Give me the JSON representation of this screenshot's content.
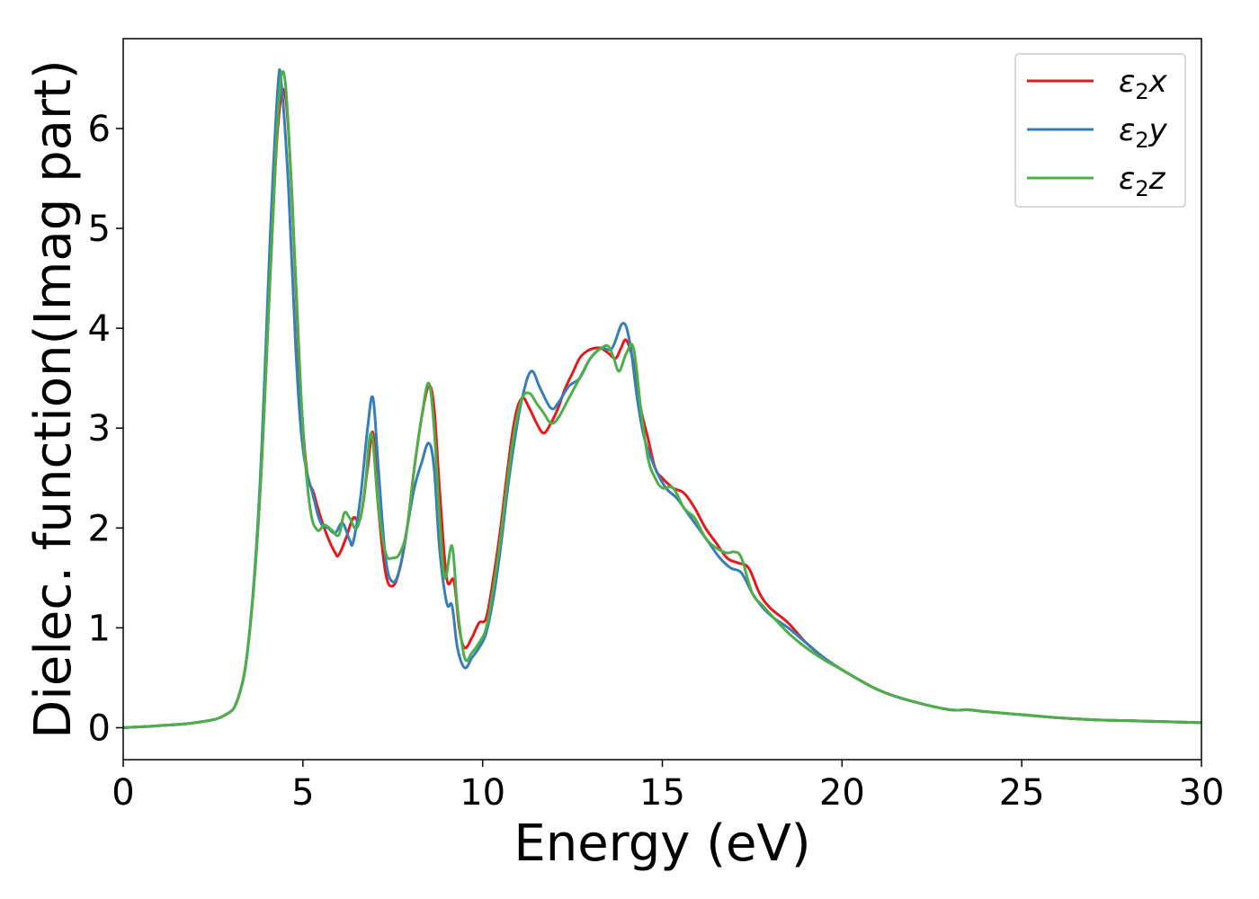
{
  "chart_data": {
    "type": "line",
    "title": "",
    "xlabel": "Energy (eV)",
    "ylabel": "Dielec. function(Imag part)",
    "xlim": [
      0,
      30
    ],
    "ylim": [
      -0.32,
      6.9
    ],
    "xticks": [
      0,
      5,
      10,
      15,
      20,
      25,
      30
    ],
    "yticks": [
      0,
      1,
      2,
      3,
      4,
      5,
      6
    ],
    "grid": false,
    "legend_position": "top-right",
    "colors": {
      "e2x": "#e41a1c",
      "e2y": "#377eb8",
      "e2z": "#4daf4a"
    },
    "series": [
      {
        "key": "e2x",
        "name_main": "ε",
        "name_sub": "2",
        "name_suffix": "x",
        "x": [
          0,
          1,
          2,
          2.8,
          3.2,
          3.5,
          3.8,
          4.1,
          4.3,
          4.5,
          4.7,
          4.9,
          5.1,
          5.3,
          5.5,
          5.7,
          5.9,
          6.0,
          6.2,
          6.4,
          6.6,
          6.8,
          6.95,
          7.1,
          7.3,
          7.5,
          7.7,
          7.9,
          8.1,
          8.3,
          8.5,
          8.65,
          8.8,
          9.0,
          9.2,
          9.35,
          9.5,
          9.7,
          9.9,
          10.1,
          10.3,
          10.5,
          10.7,
          10.9,
          11.1,
          11.3,
          11.5,
          11.7,
          11.9,
          12.1,
          12.3,
          12.5,
          12.7,
          12.9,
          13.1,
          13.3,
          13.5,
          13.7,
          13.85,
          14.0,
          14.2,
          14.4,
          14.6,
          14.8,
          15.0,
          15.3,
          15.6,
          15.9,
          16.2,
          16.5,
          16.8,
          17.1,
          17.4,
          17.7,
          18.0,
          18.5,
          19.0,
          19.5,
          20.0,
          21.0,
          22.0,
          23.0,
          23.5,
          24.0,
          25.0,
          26.0,
          27.0,
          28.0,
          29.0,
          30.0
        ],
        "y": [
          0.0,
          0.02,
          0.05,
          0.12,
          0.3,
          0.9,
          2.3,
          4.6,
          6.0,
          6.35,
          5.3,
          3.6,
          2.6,
          2.35,
          2.1,
          1.9,
          1.75,
          1.73,
          1.9,
          2.1,
          2.1,
          2.6,
          2.95,
          2.2,
          1.55,
          1.42,
          1.6,
          2.0,
          2.6,
          3.1,
          3.42,
          3.2,
          2.4,
          1.5,
          1.47,
          1.0,
          0.8,
          0.9,
          1.05,
          1.1,
          1.5,
          2.0,
          2.6,
          3.1,
          3.3,
          3.2,
          3.05,
          2.95,
          3.05,
          3.2,
          3.4,
          3.55,
          3.7,
          3.77,
          3.8,
          3.8,
          3.75,
          3.7,
          3.8,
          3.88,
          3.65,
          3.2,
          2.9,
          2.6,
          2.5,
          2.4,
          2.35,
          2.2,
          2.0,
          1.85,
          1.7,
          1.65,
          1.6,
          1.35,
          1.2,
          1.05,
          0.85,
          0.7,
          0.58,
          0.38,
          0.26,
          0.18,
          0.18,
          0.16,
          0.13,
          0.1,
          0.08,
          0.07,
          0.06,
          0.05
        ]
      },
      {
        "key": "e2y",
        "name_main": "ε",
        "name_sub": "2",
        "name_suffix": "y",
        "x": [
          0,
          1,
          2,
          2.8,
          3.2,
          3.5,
          3.8,
          4.1,
          4.3,
          4.4,
          4.6,
          4.8,
          5.0,
          5.3,
          5.5,
          5.7,
          5.9,
          6.1,
          6.3,
          6.4,
          6.6,
          6.8,
          6.95,
          7.1,
          7.3,
          7.5,
          7.7,
          7.9,
          8.1,
          8.3,
          8.5,
          8.65,
          8.8,
          9.0,
          9.15,
          9.3,
          9.5,
          9.7,
          9.9,
          10.1,
          10.3,
          10.5,
          10.7,
          10.9,
          11.1,
          11.35,
          11.6,
          11.9,
          12.1,
          12.4,
          12.7,
          13.0,
          13.3,
          13.6,
          13.9,
          14.1,
          14.3,
          14.5,
          14.8,
          15.1,
          15.4,
          15.7,
          16.0,
          16.3,
          16.6,
          16.9,
          17.2,
          17.5,
          17.8,
          18.1,
          18.5,
          19.0,
          19.5,
          20.0,
          21.0,
          22.0,
          23.0,
          23.5,
          24.0,
          25.0,
          26.0,
          27.0,
          28.0,
          29.0,
          30.0
        ],
        "y": [
          0.0,
          0.02,
          0.05,
          0.12,
          0.3,
          0.9,
          2.4,
          5.0,
          6.4,
          6.45,
          5.4,
          3.8,
          2.8,
          2.3,
          2.05,
          2.0,
          1.95,
          2.05,
          1.88,
          1.86,
          2.3,
          3.0,
          3.3,
          2.6,
          1.7,
          1.46,
          1.6,
          2.0,
          2.4,
          2.65,
          2.85,
          2.6,
          1.8,
          1.25,
          1.22,
          0.8,
          0.6,
          0.7,
          0.8,
          0.95,
          1.3,
          1.8,
          2.4,
          2.9,
          3.3,
          3.57,
          3.4,
          3.2,
          3.25,
          3.42,
          3.5,
          3.7,
          3.8,
          3.8,
          4.05,
          3.85,
          3.3,
          2.9,
          2.6,
          2.4,
          2.3,
          2.15,
          2.0,
          1.85,
          1.7,
          1.6,
          1.55,
          1.35,
          1.2,
          1.1,
          1.0,
          0.85,
          0.7,
          0.58,
          0.38,
          0.26,
          0.18,
          0.18,
          0.16,
          0.13,
          0.1,
          0.08,
          0.07,
          0.06,
          0.05
        ]
      },
      {
        "key": "e2z",
        "name_main": "ε",
        "name_sub": "2",
        "name_suffix": "z",
        "x": [
          0,
          1,
          2,
          2.8,
          3.2,
          3.5,
          3.8,
          4.1,
          4.3,
          4.45,
          4.6,
          4.8,
          5.0,
          5.2,
          5.4,
          5.6,
          5.8,
          6.0,
          6.15,
          6.3,
          6.5,
          6.7,
          6.9,
          7.1,
          7.3,
          7.5,
          7.7,
          7.9,
          8.1,
          8.3,
          8.5,
          8.65,
          8.8,
          8.95,
          9.15,
          9.3,
          9.5,
          9.7,
          9.9,
          10.1,
          10.3,
          10.5,
          10.7,
          10.9,
          11.1,
          11.3,
          11.5,
          11.7,
          11.9,
          12.1,
          12.4,
          12.7,
          13.0,
          13.3,
          13.5,
          13.65,
          13.8,
          14.0,
          14.2,
          14.4,
          14.6,
          14.8,
          15.0,
          15.3,
          15.6,
          15.9,
          16.2,
          16.5,
          16.8,
          17.0,
          17.2,
          17.5,
          17.8,
          18.1,
          18.5,
          19.0,
          19.5,
          20.0,
          21.0,
          22.0,
          23.0,
          23.5,
          24.0,
          25.0,
          26.0,
          27.0,
          28.0,
          29.0,
          30.0
        ],
        "y": [
          0.0,
          0.02,
          0.05,
          0.12,
          0.3,
          0.9,
          2.3,
          4.6,
          6.1,
          6.57,
          6.0,
          4.5,
          3.0,
          2.2,
          1.98,
          2.03,
          1.98,
          1.93,
          2.15,
          2.1,
          2.0,
          2.3,
          2.95,
          2.2,
          1.75,
          1.7,
          1.75,
          2.0,
          2.6,
          3.1,
          3.45,
          3.0,
          2.1,
          1.5,
          1.82,
          1.2,
          0.7,
          0.75,
          0.85,
          1.0,
          1.4,
          1.9,
          2.5,
          3.0,
          3.3,
          3.35,
          3.25,
          3.15,
          3.05,
          3.1,
          3.3,
          3.5,
          3.7,
          3.8,
          3.82,
          3.7,
          3.57,
          3.75,
          3.8,
          3.2,
          2.7,
          2.5,
          2.4,
          2.4,
          2.2,
          2.1,
          1.9,
          1.8,
          1.75,
          1.76,
          1.7,
          1.35,
          1.22,
          1.1,
          0.95,
          0.8,
          0.68,
          0.58,
          0.38,
          0.26,
          0.18,
          0.18,
          0.16,
          0.13,
          0.1,
          0.08,
          0.07,
          0.06,
          0.05
        ]
      }
    ]
  }
}
